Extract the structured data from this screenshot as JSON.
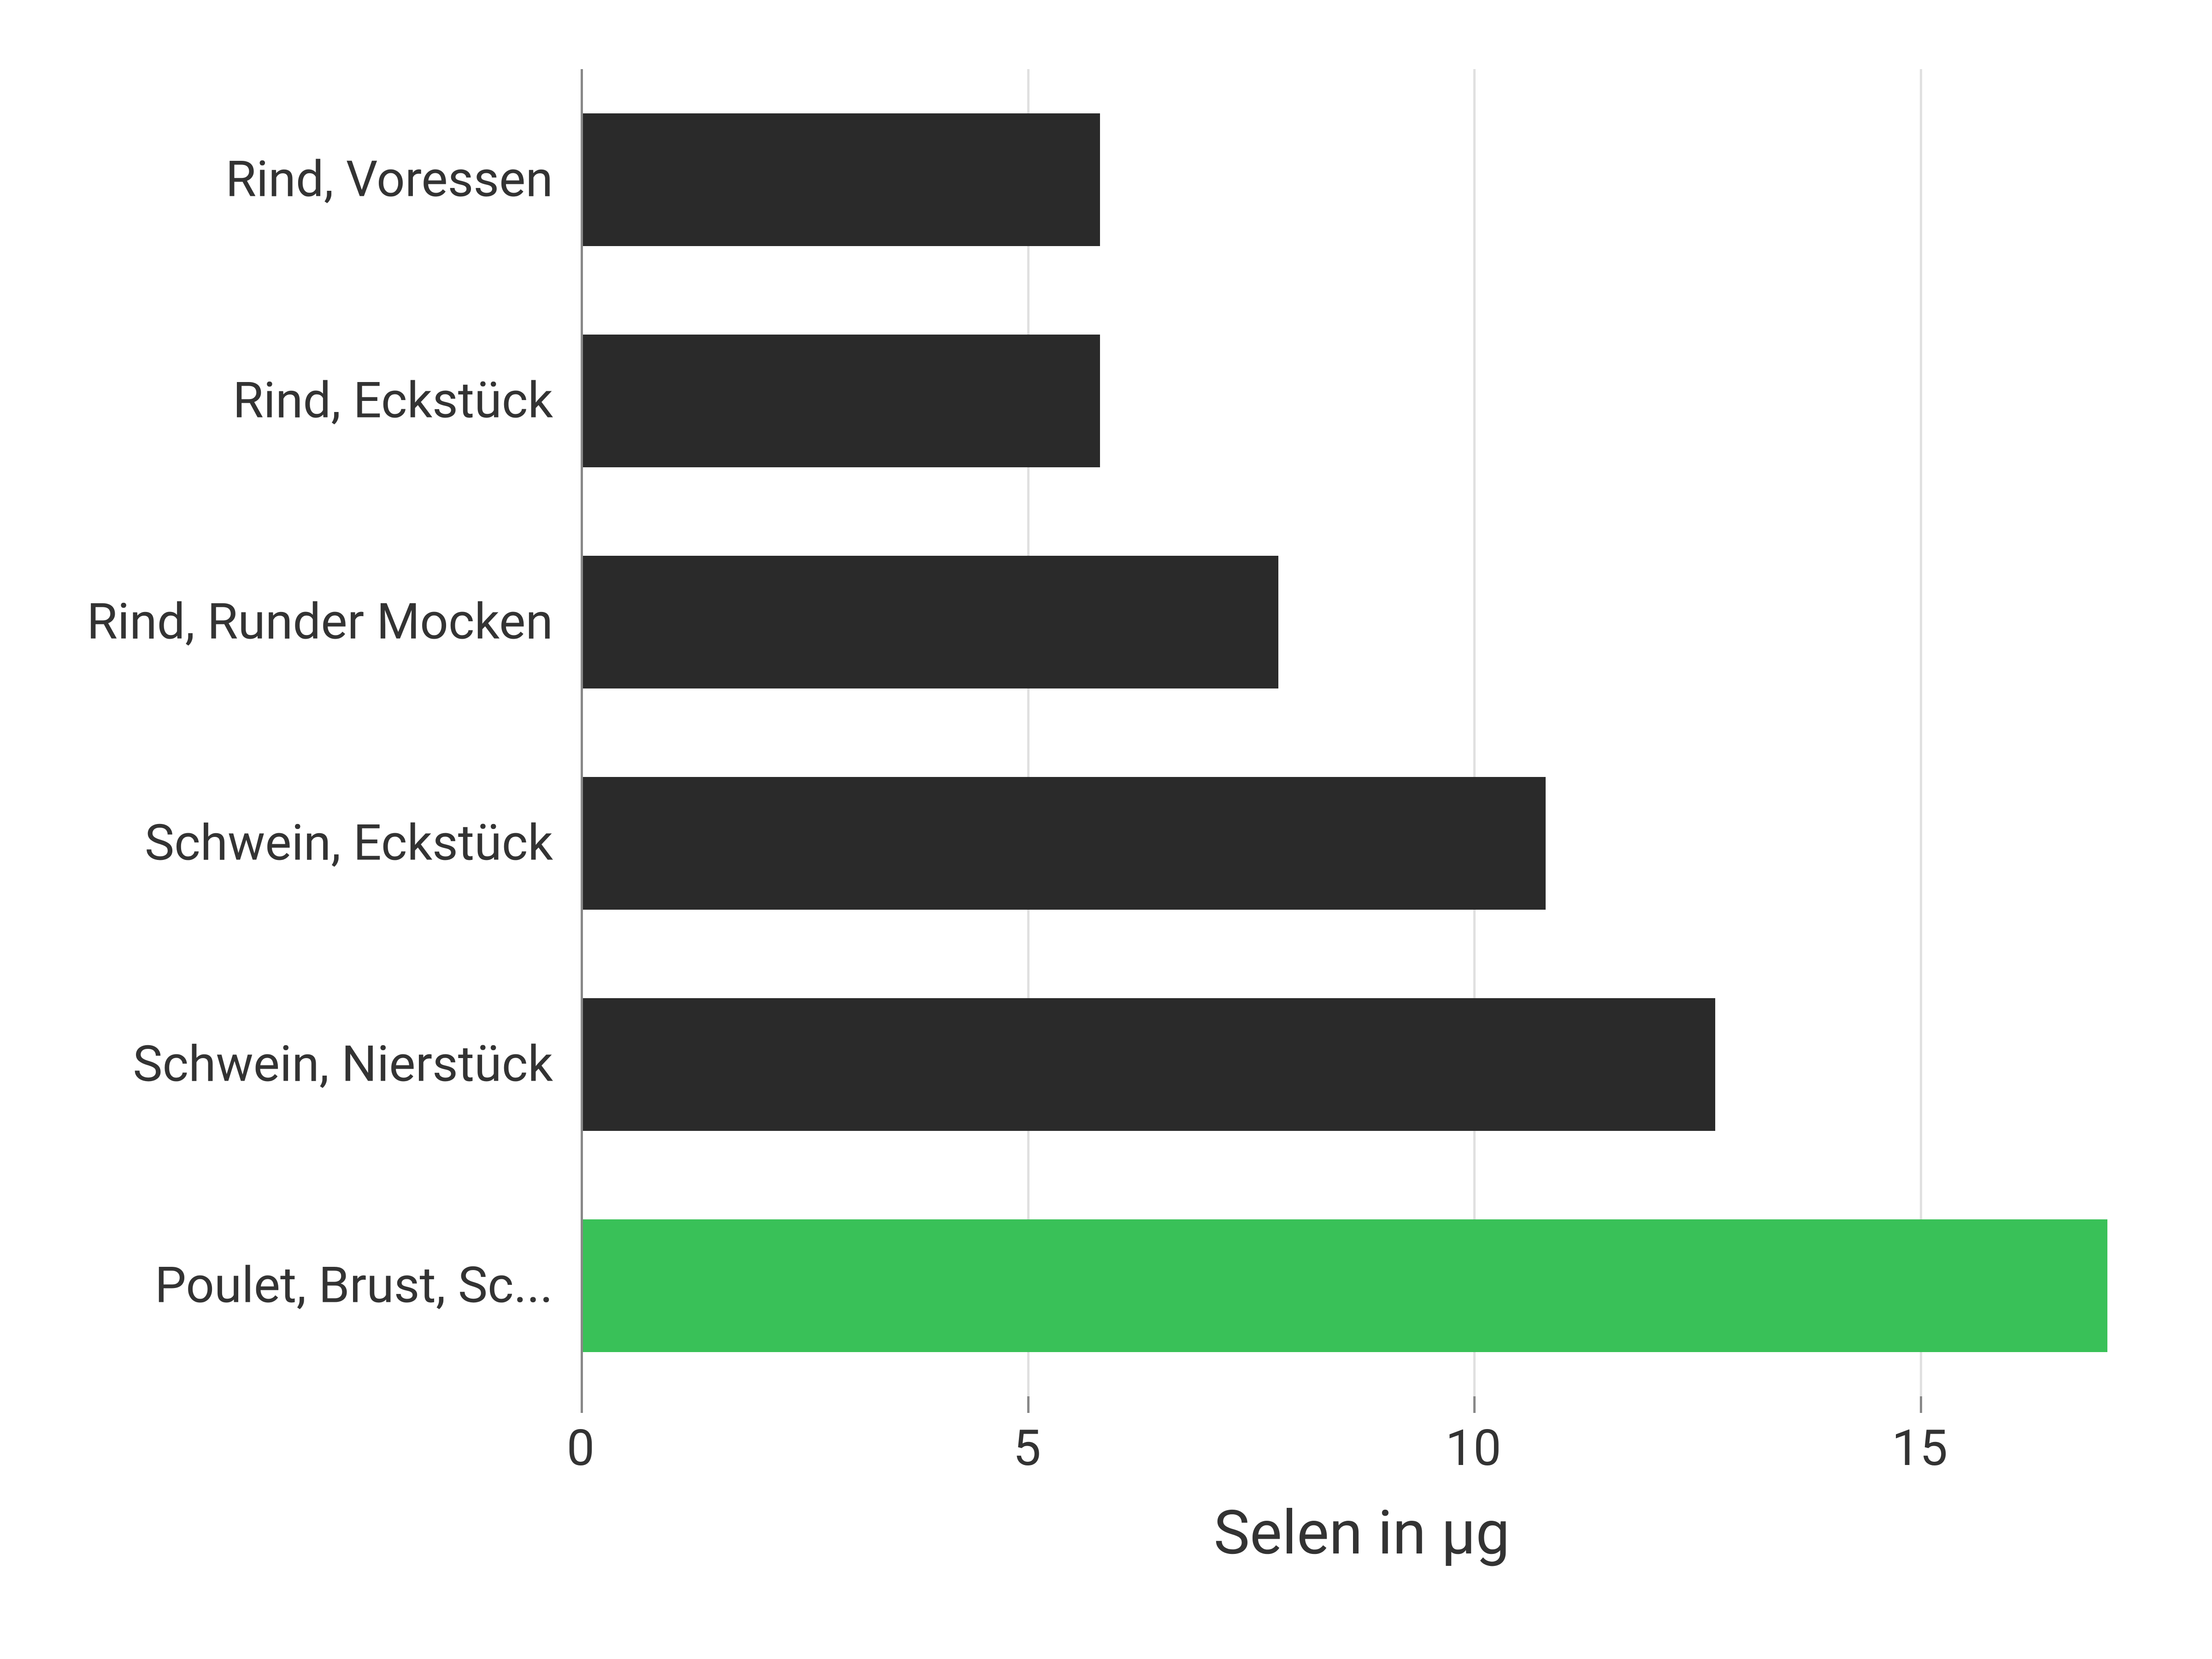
{
  "chart": {
    "type": "bar-horizontal",
    "xlabel": "Selen in μg",
    "xlabel_fontsize": 132,
    "label_fontsize": 108,
    "xlim": [
      0,
      17.5
    ],
    "xtick_step": 5,
    "xticks": [
      0,
      5,
      10,
      15
    ],
    "background_color": "#ffffff",
    "grid_color": "#e0e0e0",
    "axis_color": "#888888",
    "text_color": "#333333",
    "bar_height_ratio": 0.6,
    "categories": [
      "Rind, Voressen",
      "Rind, Eckstück",
      "Rind, Runder Mocken",
      "Schwein, Eckstück",
      "Schwein, Nierstück",
      "Poulet, Brust, Sc..."
    ],
    "values": [
      5.8,
      5.8,
      7.8,
      10.8,
      12.7,
      17.1
    ],
    "bar_colors": [
      "#2a2a2a",
      "#2a2a2a",
      "#2a2a2a",
      "#2a2a2a",
      "#2a2a2a",
      "#39c158"
    ]
  }
}
